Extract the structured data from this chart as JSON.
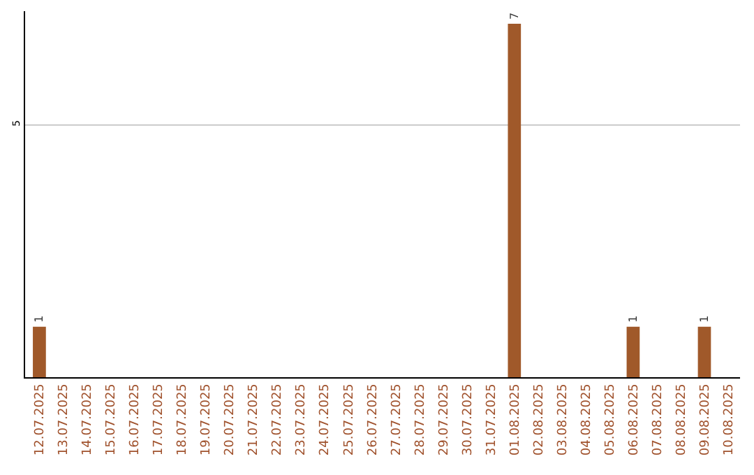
{
  "chart_data": {
    "type": "bar",
    "categories": [
      "12.07.2025",
      "13.07.2025",
      "14.07.2025",
      "15.07.2025",
      "16.07.2025",
      "17.07.2025",
      "18.07.2025",
      "19.07.2025",
      "20.07.2025",
      "21.07.2025",
      "22.07.2025",
      "23.07.2025",
      "24.07.2025",
      "25.07.2025",
      "26.07.2025",
      "27.07.2025",
      "28.07.2025",
      "29.07.2025",
      "30.07.2025",
      "31.07.2025",
      "01.08.2025",
      "02.08.2025",
      "03.08.2025",
      "04.08.2025",
      "05.08.2025",
      "06.08.2025",
      "07.08.2025",
      "08.08.2025",
      "09.08.2025",
      "10.08.2025"
    ],
    "values": [
      1,
      0,
      0,
      0,
      0,
      0,
      0,
      0,
      0,
      0,
      0,
      0,
      0,
      0,
      0,
      0,
      0,
      0,
      0,
      0,
      7,
      0,
      0,
      0,
      0,
      1,
      0,
      0,
      1,
      0
    ],
    "value_labels": [
      "1",
      null,
      null,
      null,
      null,
      null,
      null,
      null,
      null,
      null,
      null,
      null,
      null,
      null,
      null,
      null,
      null,
      null,
      null,
      null,
      "7",
      null,
      null,
      null,
      null,
      "1",
      null,
      null,
      "1",
      null
    ],
    "color": "#a0592a",
    "ylim": [
      0,
      7.25
    ],
    "yticks": [
      5
    ],
    "grid": "y"
  }
}
